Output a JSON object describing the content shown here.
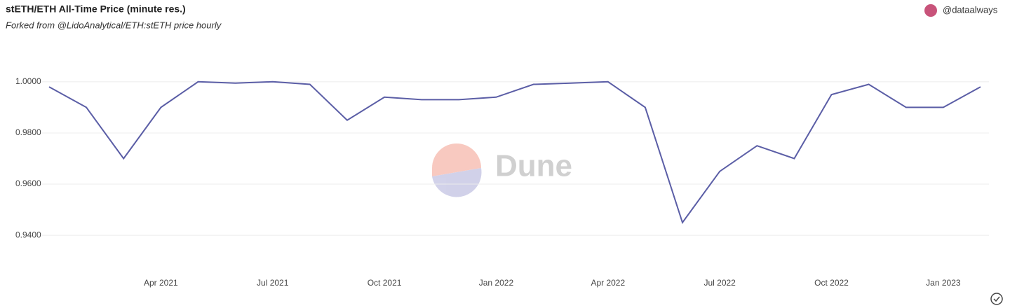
{
  "chart_data": {
    "type": "line",
    "title": "stETH/ETH All-Time Price (minute res.)",
    "subtitle": "Forked from @LidoAnalytical/ETH:stETH price hourly",
    "x": [
      "2021-01",
      "2021-02",
      "2021-03",
      "2021-04",
      "2021-05",
      "2021-06",
      "2021-07",
      "2021-08",
      "2021-09",
      "2021-10",
      "2021-11",
      "2021-12",
      "2022-01",
      "2022-02",
      "2022-03",
      "2022-04",
      "2022-05",
      "2022-06",
      "2022-07",
      "2022-08",
      "2022-09",
      "2022-10",
      "2022-11",
      "2022-12",
      "2023-01",
      "2023-02"
    ],
    "values": [
      0.998,
      0.99,
      0.97,
      0.99,
      1.0,
      0.9995,
      1.0,
      0.999,
      0.985,
      0.994,
      0.993,
      0.993,
      0.994,
      0.999,
      0.9995,
      1.0,
      0.99,
      0.945,
      0.965,
      0.975,
      0.97,
      0.995,
      0.999,
      0.99,
      0.99,
      0.998
    ],
    "color": "#5b5ea6",
    "xlim": [
      "2021-01",
      "2023-02"
    ],
    "ylim": [
      0.925,
      1.015
    ],
    "xticks": [
      {
        "value": "2021-04",
        "label": "Apr 2021"
      },
      {
        "value": "2021-07",
        "label": "Jul 2021"
      },
      {
        "value": "2021-10",
        "label": "Oct 2021"
      },
      {
        "value": "2022-01",
        "label": "Jan 2022"
      },
      {
        "value": "2022-04",
        "label": "Apr 2022"
      },
      {
        "value": "2022-07",
        "label": "Jul 2022"
      },
      {
        "value": "2022-10",
        "label": "Oct 2022"
      },
      {
        "value": "2023-01",
        "label": "Jan 2023"
      }
    ],
    "yticks": [
      {
        "value": 0.94,
        "label": "0.9400"
      },
      {
        "value": 0.96,
        "label": "0.9600"
      },
      {
        "value": 0.98,
        "label": "0.9800"
      },
      {
        "value": 1.0,
        "label": "1.0000"
      }
    ],
    "grid": true
  },
  "author": "@dataalways",
  "watermark": "Dune"
}
